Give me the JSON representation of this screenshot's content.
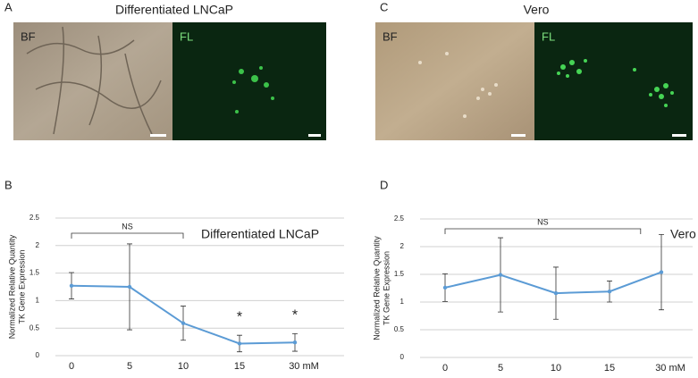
{
  "panels": [
    {
      "label": "A",
      "title": "Differentiated LNCaP",
      "left_image_label": "BF",
      "right_image_label": "FL"
    },
    {
      "label": "C",
      "title": "Vero",
      "left_image_label": "BF",
      "right_image_label": "FL"
    }
  ],
  "chart_data": [
    {
      "type": "line",
      "panel_label": "B",
      "chart_label": "Differentiated LNCaP",
      "ylabel": [
        "Normalized Relative Quantity",
        "TK Gene Expression"
      ],
      "categories": [
        "0",
        "5",
        "10",
        "15",
        "30 mM"
      ],
      "series": [
        {
          "name": "TK",
          "color": "#5b9bd5",
          "values": [
            1.27,
            1.25,
            0.59,
            0.22,
            0.24
          ],
          "errors": [
            0.24,
            0.78,
            0.31,
            0.15,
            0.16
          ]
        }
      ],
      "ylim": [
        0,
        2.5
      ],
      "yticks": [
        0,
        0.5,
        1,
        1.5,
        2,
        2.5
      ],
      "grid": true,
      "annotations": [
        "NS",
        "*",
        "*"
      ]
    },
    {
      "type": "line",
      "panel_label": "D",
      "chart_label": "Vero",
      "ylabel": [
        "Normalized Relative Quantity",
        "TK Gene Expression"
      ],
      "categories": [
        "0",
        "5",
        "10",
        "15",
        "30 mM"
      ],
      "series": [
        {
          "name": "TK",
          "color": "#5b9bd5",
          "values": [
            1.26,
            1.49,
            1.16,
            1.19,
            1.54
          ],
          "errors": [
            0.25,
            0.67,
            0.47,
            0.19,
            0.68
          ]
        }
      ],
      "ylim": [
        0,
        2.5
      ],
      "yticks": [
        0,
        0.5,
        1,
        1.5,
        2,
        2.5
      ],
      "grid": true,
      "annotations": [
        "NS"
      ]
    }
  ]
}
